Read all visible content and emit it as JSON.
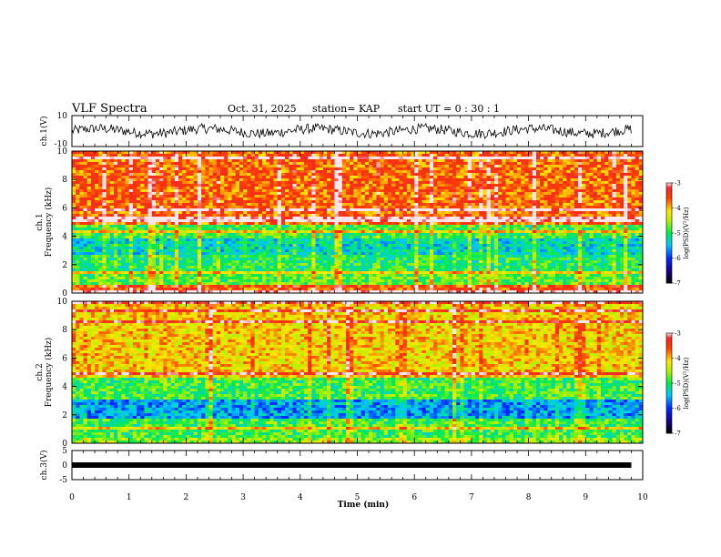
{
  "header": {
    "title": "VLF Spectra",
    "date": "Oct. 31, 2025",
    "station": "station= KAP",
    "start_ut": "start  UT =   0 : 30 : 1"
  },
  "chart_data": [
    {
      "type": "line",
      "name": "ch1-waveform",
      "ylabel": "ch.1(V)",
      "ylim": [
        -10,
        10
      ],
      "yticks": [
        "10",
        "-10"
      ],
      "xlim": [
        0,
        9.8
      ],
      "description_values": "noisy waveform roughly between -5 and 5 V"
    },
    {
      "type": "heatmap",
      "name": "ch1-spectrogram",
      "ylabel": "ch.1\nFrequency (kHz)",
      "ylim": [
        0,
        10
      ],
      "yticks": [
        "0",
        "2",
        "4",
        "6",
        "8",
        "10"
      ],
      "bands": [
        {
          "from": 0,
          "to": 0.6,
          "level": -3.6
        },
        {
          "from": 0.6,
          "to": 1.4,
          "level": -4.8
        },
        {
          "from": 1.4,
          "to": 2.6,
          "level": -5.0
        },
        {
          "from": 2.6,
          "to": 3.8,
          "level": -5.3
        },
        {
          "from": 3.8,
          "to": 4.8,
          "level": -4.9
        },
        {
          "from": 4.8,
          "to": 10,
          "level": -3.7
        }
      ],
      "colorbar": {
        "label": "log(PSD)(V²/Hz)",
        "ticks": [
          "-3",
          "-4",
          "-5",
          "-6",
          "-7"
        ],
        "range": [
          -7,
          -3
        ]
      }
    },
    {
      "type": "heatmap",
      "name": "ch2-spectrogram",
      "ylabel": "ch.2\nFrequency (kHz)",
      "ylim": [
        0,
        10
      ],
      "yticks": [
        "0",
        "2",
        "4",
        "6",
        "8",
        "10"
      ],
      "bands": [
        {
          "from": 0,
          "to": 0.4,
          "level": -4.6
        },
        {
          "from": 0.4,
          "to": 1.8,
          "level": -4.9
        },
        {
          "from": 1.8,
          "to": 3.0,
          "level": -5.6
        },
        {
          "from": 3.0,
          "to": 4.6,
          "level": -4.9
        },
        {
          "from": 4.6,
          "to": 10,
          "level": -4.1
        }
      ],
      "colorbar": {
        "label": "log(PSD)(V²/Hz)",
        "ticks": [
          "-3",
          "-4",
          "-5",
          "-6",
          "-7"
        ],
        "range": [
          -7,
          -3
        ]
      }
    },
    {
      "type": "line",
      "name": "ch3-signal",
      "ylabel": "ch.3(V)",
      "ylim": [
        -5,
        5
      ],
      "yticks": [
        "5",
        "0",
        "-5"
      ],
      "level": 0,
      "xlim": [
        0,
        9.8
      ]
    }
  ],
  "x_axis": {
    "label": "Time  (min)",
    "range": [
      0,
      10
    ],
    "ticks": [
      "0",
      "1",
      "2",
      "3",
      "4",
      "5",
      "6",
      "7",
      "8",
      "9",
      "10"
    ]
  }
}
